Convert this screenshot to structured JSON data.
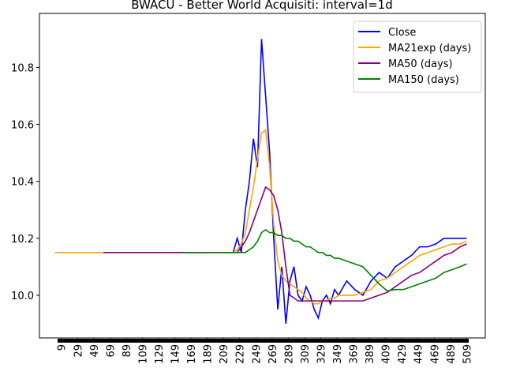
{
  "chart_data": {
    "type": "line",
    "title": "BWACU - Better World Acquisiti: interval=1d",
    "x": [
      1,
      21,
      41,
      61,
      81,
      101,
      121,
      141,
      161,
      181,
      201,
      211,
      216,
      221,
      226,
      231,
      236,
      241,
      246,
      251,
      256,
      261,
      266,
      271,
      276,
      281,
      286,
      291,
      296,
      301,
      306,
      311,
      316,
      321,
      326,
      331,
      336,
      341,
      346,
      351,
      361,
      371,
      381,
      391,
      401,
      411,
      421,
      431,
      441,
      451,
      461,
      471,
      481,
      491,
      501,
      509
    ],
    "series": [
      {
        "name": "Close",
        "color": "#0000ff",
        "values": [
          null,
          null,
          null,
          null,
          null,
          null,
          null,
          null,
          null,
          null,
          null,
          null,
          null,
          10.15,
          10.2,
          10.15,
          10.3,
          10.4,
          10.55,
          10.45,
          10.9,
          10.7,
          10.5,
          10.2,
          9.95,
          10.1,
          9.9,
          10.05,
          10.1,
          10.0,
          9.98,
          10.03,
          10.0,
          9.95,
          9.92,
          9.98,
          10.0,
          9.97,
          10.02,
          10.0,
          10.05,
          10.02,
          10.0,
          10.05,
          10.08,
          10.06,
          10.1,
          10.12,
          10.14,
          10.17,
          10.17,
          10.18,
          10.2,
          10.2,
          10.2,
          10.2
        ]
      },
      {
        "name": "MA21exp (days)",
        "color": "#ffa500",
        "values": [
          10.15,
          10.15,
          10.15,
          10.15,
          10.15,
          10.15,
          10.15,
          10.15,
          10.15,
          10.15,
          10.15,
          10.15,
          10.15,
          10.15,
          10.16,
          10.18,
          10.22,
          10.3,
          10.38,
          10.48,
          10.57,
          10.58,
          10.45,
          10.25,
          10.12,
          10.07,
          10.05,
          10.04,
          10.03,
          10.02,
          10.01,
          9.99,
          9.98,
          9.97,
          9.97,
          9.98,
          9.98,
          9.99,
          9.99,
          10.0,
          10.0,
          10.0,
          10.01,
          10.02,
          10.05,
          10.06,
          10.08,
          10.1,
          10.12,
          10.14,
          10.15,
          10.16,
          10.17,
          10.18,
          10.18,
          10.19
        ]
      },
      {
        "name": "MA50 (days)",
        "color": "#800080",
        "values": [
          null,
          null,
          null,
          10.15,
          10.15,
          10.15,
          10.15,
          10.15,
          10.15,
          10.15,
          10.15,
          10.15,
          10.15,
          10.15,
          10.15,
          10.17,
          10.19,
          10.22,
          10.26,
          10.3,
          10.34,
          10.38,
          10.37,
          10.35,
          10.3,
          10.22,
          10.1,
          10.0,
          9.99,
          9.98,
          9.98,
          9.98,
          9.98,
          9.98,
          9.98,
          9.98,
          9.98,
          9.98,
          9.98,
          9.98,
          9.98,
          9.98,
          9.98,
          9.99,
          10.0,
          10.01,
          10.03,
          10.05,
          10.07,
          10.08,
          10.1,
          10.12,
          10.14,
          10.15,
          10.17,
          10.18
        ]
      },
      {
        "name": "MA150 (days)",
        "color": "#008000",
        "values": [
          null,
          null,
          null,
          null,
          null,
          null,
          null,
          null,
          10.15,
          10.15,
          10.15,
          10.15,
          10.15,
          10.15,
          10.15,
          10.15,
          10.15,
          10.16,
          10.17,
          10.19,
          10.22,
          10.23,
          10.22,
          10.22,
          10.21,
          10.21,
          10.2,
          10.2,
          10.19,
          10.19,
          10.18,
          10.17,
          10.17,
          10.16,
          10.15,
          10.15,
          10.14,
          10.14,
          10.13,
          10.13,
          10.12,
          10.11,
          10.1,
          10.07,
          10.04,
          10.015,
          10.02,
          10.02,
          10.03,
          10.04,
          10.05,
          10.06,
          10.08,
          10.09,
          10.1,
          10.11
        ]
      }
    ],
    "xlim": [
      -18,
      532
    ],
    "ylim": [
      9.85,
      10.99
    ],
    "xticks": [
      9,
      29,
      49,
      69,
      89,
      109,
      129,
      149,
      169,
      189,
      209,
      229,
      249,
      269,
      289,
      309,
      329,
      349,
      369,
      389,
      409,
      429,
      449,
      469,
      489,
      509
    ],
    "yticks": [
      {
        "value": 10.0,
        "label": "10.0"
      },
      {
        "value": 10.2,
        "label": "10.2"
      },
      {
        "value": 10.4,
        "label": "10.4"
      },
      {
        "value": 10.6,
        "label": "10.6"
      },
      {
        "value": 10.8,
        "label": "10.8"
      }
    ],
    "legend": "upper right"
  }
}
